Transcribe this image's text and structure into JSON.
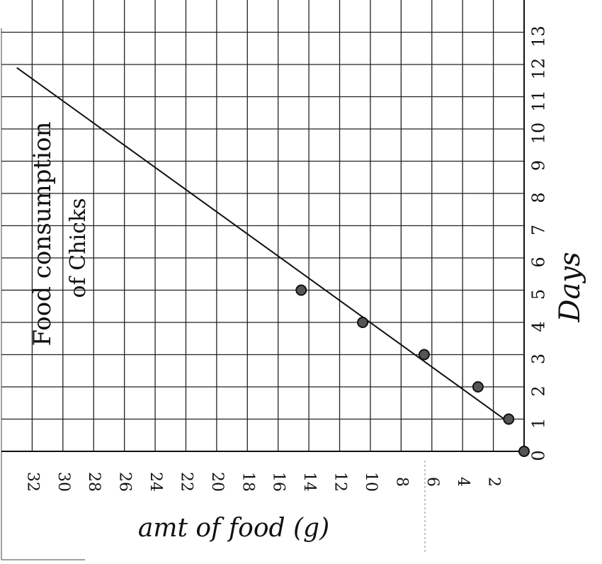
{
  "chart_data": {
    "type": "scatter",
    "title": "Food consumption",
    "subtitle": "of Chicks",
    "x_label": "amt of food (g)",
    "y_label": "Days",
    "x": [
      0,
      1,
      3,
      6.5,
      10.5,
      14.5
    ],
    "y": [
      0,
      1,
      2,
      3,
      4,
      5
    ],
    "color": "#555555",
    "trend_line": {
      "x": [
        1,
        33
      ],
      "y": [
        0.9,
        11.9
      ]
    },
    "xlim": [
      34,
      0
    ],
    "ylim": [
      0,
      14
    ],
    "xticks": [
      2,
      4,
      6,
      8,
      10,
      12,
      14,
      16,
      18,
      20,
      22,
      24,
      26,
      28,
      30,
      32
    ],
    "yticks": [
      0,
      1,
      2,
      3,
      4,
      5,
      6,
      7,
      8,
      9,
      10,
      11,
      12,
      13
    ],
    "grid": true
  }
}
